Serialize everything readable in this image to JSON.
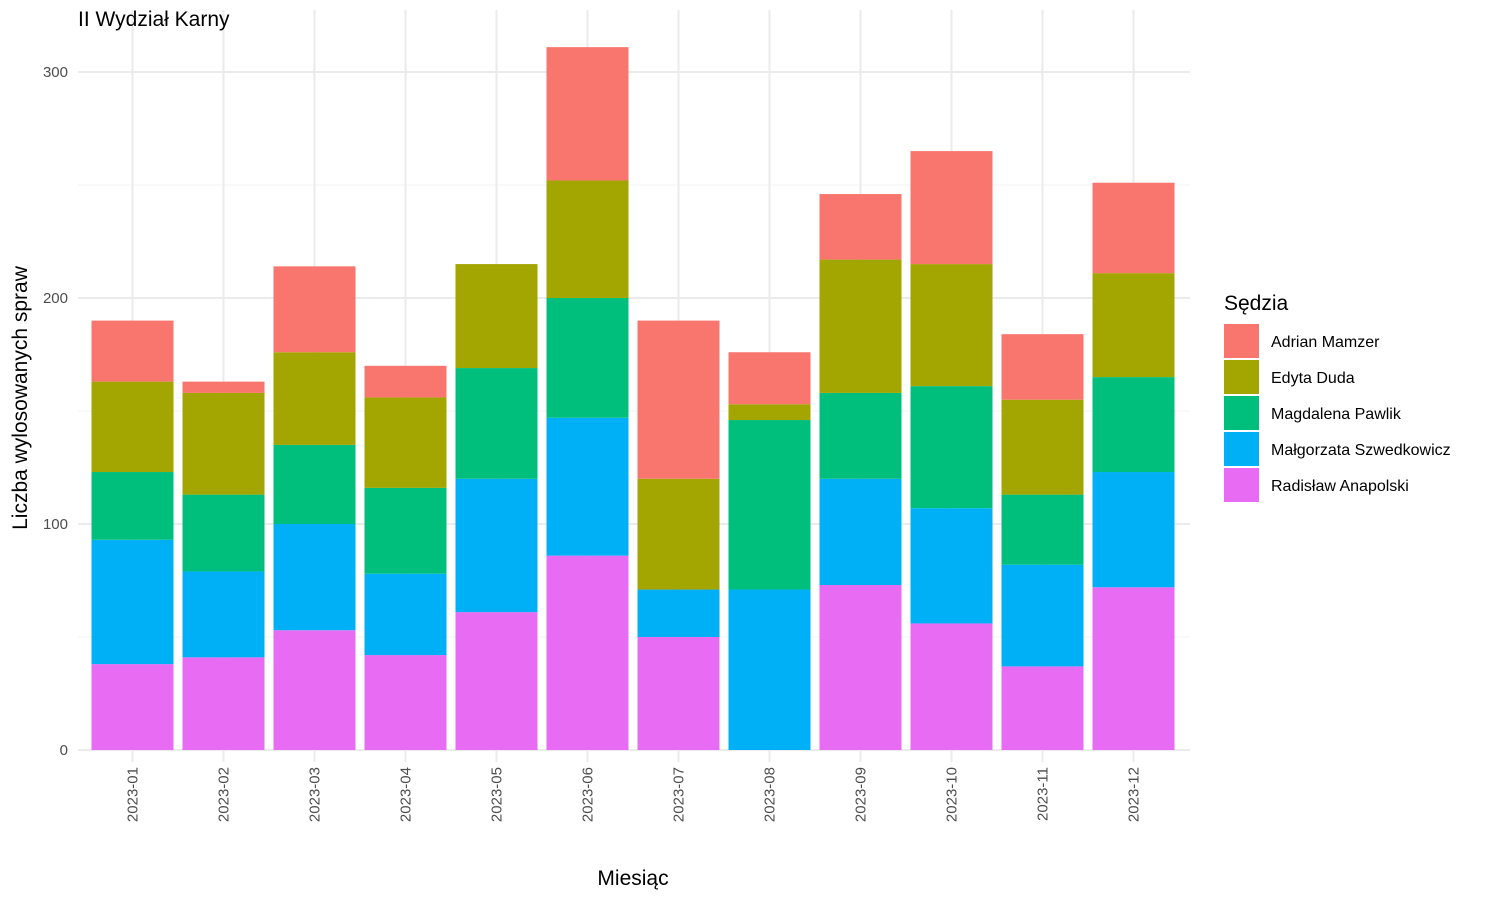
{
  "chart_data": {
    "type": "bar",
    "stacked": true,
    "title": "II Wydział Karny",
    "xlabel": "Miesiąc",
    "ylabel": "Liczba wylosowanych spraw",
    "ylim": [
      0,
      320
    ],
    "yticks": [
      0,
      100,
      200,
      300
    ],
    "grid": true,
    "legend_title": "Sędzia",
    "legend_position": "right",
    "categories": [
      "2023-01",
      "2023-02",
      "2023-03",
      "2023-04",
      "2023-05",
      "2023-06",
      "2023-07",
      "2023-08",
      "2023-09",
      "2023-10",
      "2023-11",
      "2023-12"
    ],
    "series": [
      {
        "name": "Radisław Anapolski",
        "color": "#E76BF3",
        "values": [
          38,
          41,
          53,
          42,
          61,
          86,
          50,
          0,
          73,
          56,
          37,
          72
        ]
      },
      {
        "name": "Małgorzata Szwedkowicz",
        "color": "#00B0F6",
        "values": [
          55,
          38,
          47,
          36,
          59,
          61,
          21,
          71,
          47,
          51,
          45,
          51
        ]
      },
      {
        "name": "Magdalena Pawlik",
        "color": "#00BF7D",
        "values": [
          30,
          34,
          35,
          38,
          49,
          53,
          0,
          75,
          38,
          54,
          31,
          42
        ]
      },
      {
        "name": "Edyta Duda",
        "color": "#A3A500",
        "values": [
          40,
          45,
          41,
          40,
          46,
          52,
          49,
          7,
          59,
          54,
          42,
          46
        ]
      },
      {
        "name": "Adrian Mamzer",
        "color": "#F8766D",
        "values": [
          27,
          5,
          38,
          14,
          0,
          59,
          70,
          23,
          29,
          50,
          29,
          40
        ]
      }
    ],
    "legend_order": [
      "Adrian Mamzer",
      "Edyta Duda",
      "Magdalena Pawlik",
      "Małgorzata Szwedkowicz",
      "Radisław Anapolski"
    ]
  }
}
